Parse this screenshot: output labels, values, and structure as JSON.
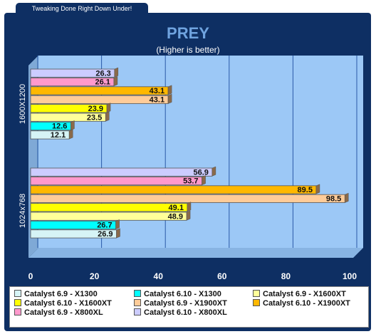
{
  "banner": {
    "text": "Tweaking Done Right Down Under!"
  },
  "chart_data": {
    "type": "bar",
    "orientation": "horizontal",
    "title": "PREY",
    "subtitle": "(Higher is better)",
    "xlim": [
      0,
      100
    ],
    "x_ticks": [
      "0",
      "20",
      "40",
      "60",
      "80",
      "100"
    ],
    "grid": true,
    "legend_position": "bottom",
    "categories": [
      "1600X1200",
      "1024x768"
    ],
    "series": [
      {
        "name": "Catalyst 6.9 - X1300",
        "color": "#d6f4f6",
        "values": [
          12.1,
          26.9
        ]
      },
      {
        "name": "Catalyst 6.10 - X1300",
        "color": "#00ffff",
        "values": [
          12.6,
          26.7
        ]
      },
      {
        "name": "Catalyst 6.9 - X1600XT",
        "color": "#ffff99",
        "values": [
          23.5,
          48.9
        ]
      },
      {
        "name": "Catalyst 6.10 - X1600XT",
        "color": "#ffff00",
        "values": [
          23.9,
          49.1
        ]
      },
      {
        "name": "Catalyst 6.9 - X1900XT",
        "color": "#ffcc99",
        "values": [
          43.1,
          98.5
        ]
      },
      {
        "name": "Catalyst 6.10 - X1900XT",
        "color": "#ffb800",
        "values": [
          43.1,
          89.5
        ]
      },
      {
        "name": "Catalyst 6.9 - X800XL",
        "color": "#ff99cc",
        "values": [
          26.1,
          53.7
        ]
      },
      {
        "name": "Catalyst 6.10 - X800XL",
        "color": "#ccccff",
        "values": [
          26.3,
          56.9
        ]
      }
    ]
  }
}
